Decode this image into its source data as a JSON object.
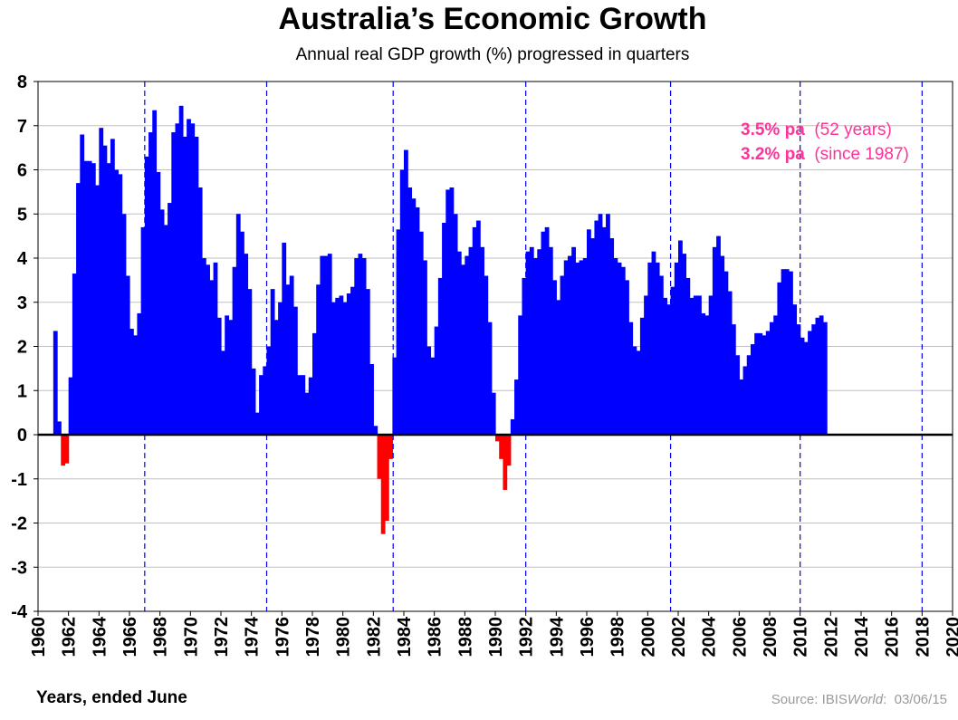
{
  "title": "Australia’s Economic Growth",
  "subtitle": "Annual real GDP growth (%) progressed in quarters",
  "xlabel": "Years, ended June",
  "source": {
    "prefix": "Source: IBIS",
    "brand": "World",
    "date": "03/06/15"
  },
  "annotations": [
    {
      "rate": "3.5% pa",
      "period": "(52 years)"
    },
    {
      "rate": "3.2% pa",
      "period": "(since 1987)"
    }
  ],
  "colors": {
    "positive": "#0000ff",
    "negative": "#ff0000",
    "forecast": "#4d4dff",
    "annotation": "#ff3399",
    "vline": "#0000ff"
  },
  "chart_data": {
    "type": "bar",
    "xlim": [
      1960,
      2020
    ],
    "ylim": [
      -4,
      8
    ],
    "x_ticks": [
      "1960",
      "1962",
      "1964",
      "1966",
      "1968",
      "1970",
      "1972",
      "1974",
      "1976",
      "1978",
      "1980",
      "1982",
      "1984",
      "1986",
      "1988",
      "1990",
      "1992",
      "1994",
      "1996",
      "1998",
      "2000",
      "2002",
      "2004",
      "2006",
      "2008",
      "2010",
      "2012",
      "2014",
      "2016",
      "2018",
      "2020"
    ],
    "y_ticks": [
      "8",
      "7",
      "6",
      "5",
      "4",
      "3",
      "2",
      "1",
      "0",
      "-1",
      "-2",
      "-3",
      "-4"
    ],
    "grid": true,
    "dashed_vlines": [
      1967,
      1975,
      1983.3,
      1992,
      2001.5,
      2010,
      2018
    ],
    "forecast_start": 2013.25,
    "points": [
      [
        1961.25,
        2.35
      ],
      [
        1961.5,
        0.3
      ],
      [
        1961.75,
        -0.7
      ],
      [
        1962.0,
        -0.65
      ],
      [
        1962.25,
        1.3
      ],
      [
        1962.5,
        3.65
      ],
      [
        1962.75,
        5.7
      ],
      [
        1963.0,
        6.8
      ],
      [
        1963.25,
        6.2
      ],
      [
        1963.5,
        6.2
      ],
      [
        1963.75,
        6.15
      ],
      [
        1964.0,
        5.65
      ],
      [
        1964.25,
        6.95
      ],
      [
        1964.5,
        6.55
      ],
      [
        1964.75,
        6.15
      ],
      [
        1965.0,
        6.7
      ],
      [
        1965.25,
        6.0
      ],
      [
        1965.5,
        5.9
      ],
      [
        1965.75,
        5.0
      ],
      [
        1966.0,
        3.6
      ],
      [
        1966.25,
        2.4
      ],
      [
        1966.5,
        2.25
      ],
      [
        1966.75,
        2.75
      ],
      [
        1967.0,
        4.7
      ],
      [
        1967.25,
        6.3
      ],
      [
        1967.5,
        6.85
      ],
      [
        1967.75,
        7.35
      ],
      [
        1968.0,
        5.95
      ],
      [
        1968.25,
        5.1
      ],
      [
        1968.5,
        4.75
      ],
      [
        1968.75,
        5.25
      ],
      [
        1969.0,
        6.85
      ],
      [
        1969.25,
        7.05
      ],
      [
        1969.5,
        7.45
      ],
      [
        1969.75,
        6.75
      ],
      [
        1970.0,
        7.15
      ],
      [
        1970.25,
        7.05
      ],
      [
        1970.5,
        6.75
      ],
      [
        1970.75,
        5.6
      ],
      [
        1971.0,
        4.0
      ],
      [
        1971.25,
        3.85
      ],
      [
        1971.5,
        3.5
      ],
      [
        1971.75,
        3.9
      ],
      [
        1972.0,
        2.65
      ],
      [
        1972.25,
        1.9
      ],
      [
        1972.5,
        2.7
      ],
      [
        1972.75,
        2.6
      ],
      [
        1973.0,
        3.8
      ],
      [
        1973.25,
        5.0
      ],
      [
        1973.5,
        4.6
      ],
      [
        1973.75,
        4.1
      ],
      [
        1974.0,
        3.3
      ],
      [
        1974.25,
        1.5
      ],
      [
        1974.5,
        0.5
      ],
      [
        1974.75,
        1.35
      ],
      [
        1975.0,
        1.55
      ],
      [
        1975.25,
        2.0
      ],
      [
        1975.5,
        3.3
      ],
      [
        1975.75,
        2.6
      ],
      [
        1976.0,
        3.0
      ],
      [
        1976.25,
        4.35
      ],
      [
        1976.5,
        3.4
      ],
      [
        1976.75,
        3.6
      ],
      [
        1977.0,
        2.9
      ],
      [
        1977.25,
        1.35
      ],
      [
        1977.5,
        1.35
      ],
      [
        1977.75,
        0.95
      ],
      [
        1978.0,
        1.3
      ],
      [
        1978.25,
        2.3
      ],
      [
        1978.5,
        3.4
      ],
      [
        1978.75,
        4.05
      ],
      [
        1979.0,
        4.05
      ],
      [
        1979.25,
        4.1
      ],
      [
        1979.5,
        3.0
      ],
      [
        1979.75,
        3.1
      ],
      [
        1980.0,
        3.15
      ],
      [
        1980.25,
        3.0
      ],
      [
        1980.5,
        3.2
      ],
      [
        1980.75,
        3.35
      ],
      [
        1981.0,
        4.0
      ],
      [
        1981.25,
        4.1
      ],
      [
        1981.5,
        4.0
      ],
      [
        1981.75,
        3.3
      ],
      [
        1982.0,
        1.6
      ],
      [
        1982.25,
        0.2
      ],
      [
        1982.5,
        -1.0
      ],
      [
        1982.75,
        -2.25
      ],
      [
        1983.0,
        -1.95
      ],
      [
        1983.25,
        -0.55
      ],
      [
        1983.5,
        1.75
      ],
      [
        1983.75,
        4.65
      ],
      [
        1984.0,
        6.0
      ],
      [
        1984.25,
        6.45
      ],
      [
        1984.5,
        5.6
      ],
      [
        1984.75,
        5.35
      ],
      [
        1985.0,
        5.15
      ],
      [
        1985.25,
        4.6
      ],
      [
        1985.5,
        3.95
      ],
      [
        1985.75,
        2.0
      ],
      [
        1986.0,
        1.75
      ],
      [
        1986.25,
        2.45
      ],
      [
        1986.5,
        3.55
      ],
      [
        1986.75,
        4.8
      ],
      [
        1987.0,
        5.55
      ],
      [
        1987.25,
        5.6
      ],
      [
        1987.5,
        5.0
      ],
      [
        1987.75,
        4.15
      ],
      [
        1988.0,
        3.85
      ],
      [
        1988.25,
        4.05
      ],
      [
        1988.5,
        4.25
      ],
      [
        1988.75,
        4.7
      ],
      [
        1989.0,
        4.85
      ],
      [
        1989.25,
        4.25
      ],
      [
        1989.5,
        3.6
      ],
      [
        1989.75,
        2.55
      ],
      [
        1990.0,
        0.95
      ],
      [
        1990.25,
        -0.15
      ],
      [
        1990.5,
        -0.55
      ],
      [
        1990.75,
        -1.25
      ],
      [
        1991.0,
        -0.7
      ],
      [
        1991.25,
        0.35
      ],
      [
        1991.5,
        1.25
      ],
      [
        1991.75,
        2.7
      ],
      [
        1992.0,
        3.55
      ],
      [
        1992.25,
        4.15
      ],
      [
        1992.5,
        4.25
      ],
      [
        1992.75,
        4.0
      ],
      [
        1993.0,
        4.2
      ],
      [
        1993.25,
        4.6
      ],
      [
        1993.5,
        4.7
      ],
      [
        1993.75,
        4.25
      ],
      [
        1994.0,
        3.5
      ],
      [
        1994.25,
        3.05
      ],
      [
        1994.5,
        3.6
      ],
      [
        1994.75,
        3.95
      ],
      [
        1995.0,
        4.05
      ],
      [
        1995.25,
        4.25
      ],
      [
        1995.5,
        3.9
      ],
      [
        1995.75,
        3.95
      ],
      [
        1996.0,
        4.0
      ],
      [
        1996.25,
        4.65
      ],
      [
        1996.5,
        4.45
      ],
      [
        1996.75,
        4.85
      ],
      [
        1997.0,
        5.0
      ],
      [
        1997.25,
        4.7
      ],
      [
        1997.5,
        5.0
      ],
      [
        1997.75,
        4.45
      ],
      [
        1998.0,
        4.0
      ],
      [
        1998.25,
        3.9
      ],
      [
        1998.5,
        3.8
      ],
      [
        1998.75,
        3.5
      ],
      [
        1999.0,
        2.55
      ],
      [
        1999.25,
        2.0
      ],
      [
        1999.5,
        1.9
      ],
      [
        1999.75,
        2.65
      ],
      [
        2000.0,
        3.15
      ],
      [
        2000.25,
        3.9
      ],
      [
        2000.5,
        4.15
      ],
      [
        2000.75,
        3.9
      ],
      [
        2001.0,
        3.6
      ],
      [
        2001.25,
        3.1
      ],
      [
        2001.5,
        2.95
      ],
      [
        2001.75,
        3.35
      ],
      [
        2002.0,
        3.9
      ],
      [
        2002.25,
        4.4
      ],
      [
        2002.5,
        4.1
      ],
      [
        2002.75,
        3.55
      ],
      [
        2003.0,
        3.1
      ],
      [
        2003.25,
        3.15
      ],
      [
        2003.5,
        3.15
      ],
      [
        2003.75,
        2.75
      ],
      [
        2004.0,
        2.7
      ],
      [
        2004.25,
        3.15
      ],
      [
        2004.5,
        4.25
      ],
      [
        2004.75,
        4.5
      ],
      [
        2005.0,
        4.05
      ],
      [
        2005.25,
        3.7
      ],
      [
        2005.5,
        3.25
      ],
      [
        2005.75,
        2.5
      ],
      [
        2006.0,
        1.8
      ],
      [
        2006.25,
        1.25
      ],
      [
        2006.5,
        1.55
      ],
      [
        2006.75,
        1.8
      ],
      [
        2007.0,
        2.05
      ],
      [
        2007.25,
        2.3
      ],
      [
        2007.5,
        2.3
      ],
      [
        2007.75,
        2.25
      ],
      [
        2008.0,
        2.35
      ],
      [
        2008.25,
        2.55
      ],
      [
        2008.5,
        2.7
      ],
      [
        2008.75,
        3.45
      ],
      [
        2009.0,
        3.75
      ],
      [
        2009.25,
        3.75
      ],
      [
        2009.5,
        3.7
      ],
      [
        2009.75,
        2.95
      ],
      [
        2010.0,
        2.5
      ],
      [
        2010.25,
        2.2
      ],
      [
        2010.5,
        2.1
      ],
      [
        2010.75,
        2.35
      ],
      [
        2011.0,
        2.5
      ],
      [
        2011.25,
        2.65
      ],
      [
        2011.5,
        2.7
      ],
      [
        2011.75,
        2.55
      ]
    ]
  }
}
